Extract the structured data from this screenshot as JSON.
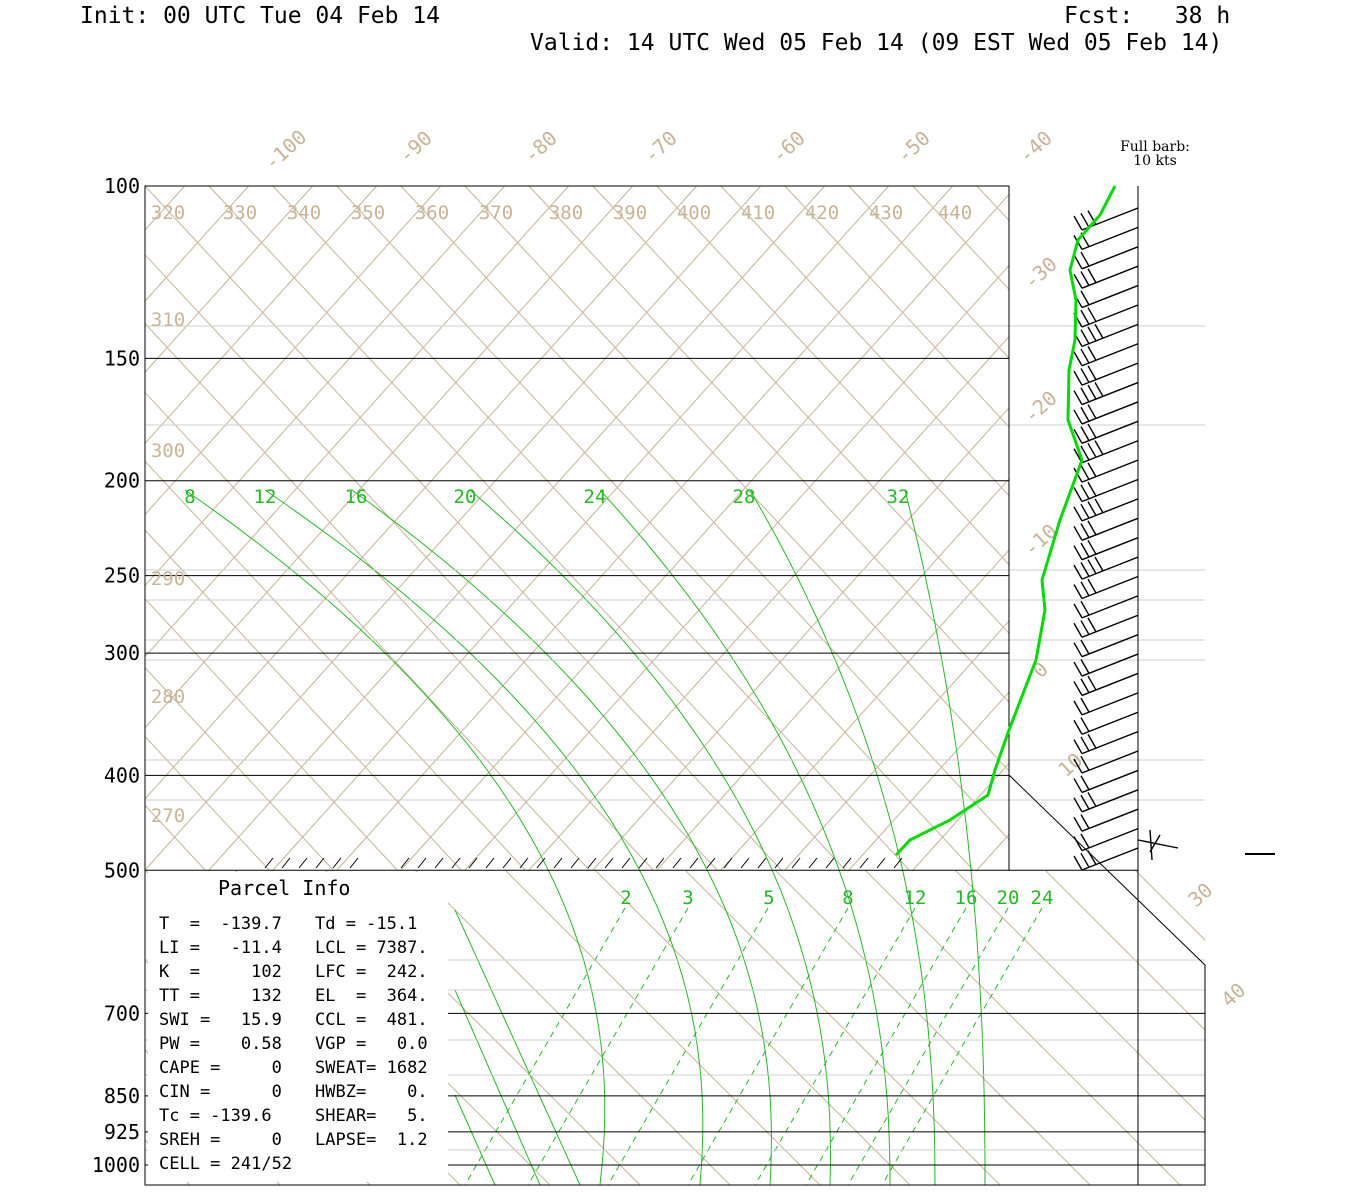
{
  "header": {
    "init": "Init: 00 UTC Tue 04 Feb 14",
    "fcst": "Fcst:   38 h",
    "valid": "Valid: 14 UTC Wed 05 Feb 14 (09 EST Wed 05 Feb 14)"
  },
  "barb_note": {
    "line1": "Full barb:",
    "line2": "10 kts"
  },
  "parcel_info": {
    "title": "Parcel Info",
    "rows": [
      [
        "T  =  -139.7",
        "Td = -15.1"
      ],
      [
        "LI =   -11.4",
        "LCL = 7387."
      ],
      [
        "K  =     102",
        "LFC =  242."
      ],
      [
        "TT =     132",
        "EL  =  364."
      ],
      [
        "SWI =   15.9",
        "CCL =  481."
      ],
      [
        "PW =    0.58",
        "VGP =   0.0"
      ],
      [
        "CAPE =     0",
        "SWEAT= 1682"
      ],
      [
        "CIN =      0",
        "HWBZ=    0."
      ],
      [
        "Tc = -139.6",
        "SHEAR=   5."
      ],
      [
        "SREH =     0",
        "LAPSE=  1.2"
      ],
      [
        "CELL = 241/52",
        ""
      ]
    ]
  },
  "colors": {
    "isotherm": "#c8b496",
    "moist": "#22bb22",
    "profile": "#00dd00",
    "axis": "#000000"
  },
  "chart_data": {
    "type": "skew-t",
    "pressure_levels": [
      100,
      150,
      200,
      250,
      300,
      400,
      500,
      700,
      850,
      925,
      1000
    ],
    "pressure_labels": [
      "100",
      "150",
      "200",
      "250",
      "300",
      "400",
      "500",
      "700",
      "850",
      "925",
      "1000"
    ],
    "isotherm_labels": [
      "-100",
      "-90",
      "-80",
      "-70",
      "-60",
      "-50",
      "-40",
      "-30",
      "-20",
      "-10",
      "0",
      "10",
      "30",
      "40"
    ],
    "theta_labels": [
      "320",
      "330",
      "340",
      "350",
      "360",
      "370",
      "380",
      "390",
      "400",
      "410",
      "420",
      "430",
      "440",
      "310",
      "300",
      "290",
      "280",
      "270"
    ],
    "theta_e_labels": [
      "8",
      "12",
      "16",
      "20",
      "24",
      "28",
      "32"
    ],
    "mixing_ratio_labels": [
      "2",
      "3",
      "5",
      "8",
      "12",
      "16",
      "20",
      "24"
    ],
    "profile": {
      "name": "",
      "p": [
        100,
        115,
        130,
        150,
        175,
        200,
        225,
        250,
        280,
        300,
        325,
        350,
        375,
        400,
        425,
        450,
        465,
        480
      ],
      "t": [
        -36,
        -40,
        -41,
        -40,
        -41,
        -40,
        -38,
        -36,
        -35,
        -34,
        -31,
        -27,
        -24,
        -20,
        -16,
        -11,
        -8,
        -7
      ]
    },
    "wind": {
      "barb_levels": 34,
      "full_barb_kts": 10
    }
  }
}
